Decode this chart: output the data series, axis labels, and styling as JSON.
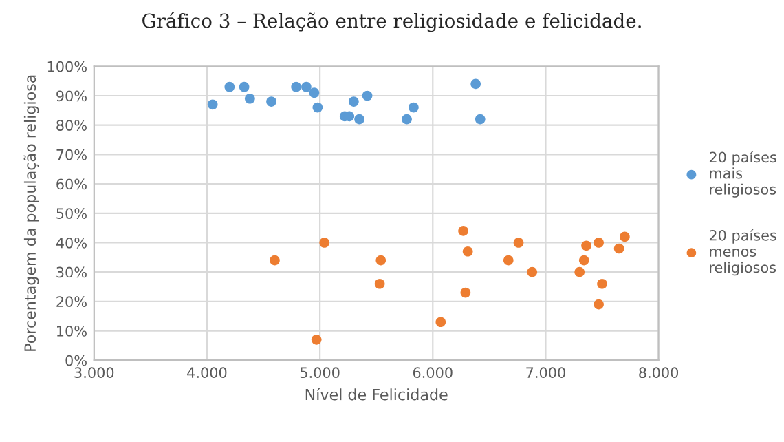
{
  "chart_data": {
    "type": "scatter",
    "title": "Gráfico 3 – Relação entre religiosidade e felicidade.",
    "xlabel": "Nível de Felicidade",
    "ylabel": "Porcentagem da população religiosa",
    "series": [
      {
        "name": "20 países mais religiosos",
        "color": "#5b9bd5",
        "x": [
          4050,
          4200,
          4330,
          4380,
          4570,
          4790,
          4880,
          4950,
          4980,
          5220,
          5260,
          5300,
          5350,
          5420,
          5770,
          5830,
          6380,
          6420
        ],
        "values": [
          87,
          93,
          93,
          89,
          88,
          93,
          93,
          91,
          86,
          83,
          83,
          88,
          82,
          90,
          82,
          86,
          94,
          82
        ]
      },
      {
        "name": "20 países menos religiosos",
        "color": "#ed7d31",
        "x": [
          4600,
          5040,
          4970,
          5540,
          5530,
          6070,
          6270,
          6310,
          6290,
          6670,
          6760,
          6880,
          7300,
          7360,
          7340,
          7470,
          7500,
          7470,
          7650,
          7700
        ],
        "values": [
          34,
          40,
          7,
          34,
          26,
          13,
          44,
          37,
          23,
          34,
          40,
          30,
          30,
          39,
          34,
          40,
          26,
          19,
          38,
          42
        ]
      }
    ],
    "xlim": [
      3000,
      8000
    ],
    "xticks": [
      {
        "value": 3000,
        "label": "3.000"
      },
      {
        "value": 4000,
        "label": "4.000"
      },
      {
        "value": 5000,
        "label": "5.000"
      },
      {
        "value": 6000,
        "label": "6.000"
      },
      {
        "value": 7000,
        "label": "7.000"
      },
      {
        "value": 8000,
        "label": "8.000"
      }
    ],
    "ylim": [
      0,
      100
    ],
    "yticks": [
      {
        "value": 0,
        "label": "0%"
      },
      {
        "value": 10,
        "label": "10%"
      },
      {
        "value": 20,
        "label": "20%"
      },
      {
        "value": 30,
        "label": "30%"
      },
      {
        "value": 40,
        "label": "40%"
      },
      {
        "value": 50,
        "label": "50%"
      },
      {
        "value": 60,
        "label": "60%"
      },
      {
        "value": 70,
        "label": "70%"
      },
      {
        "value": 80,
        "label": "80%"
      },
      {
        "value": 90,
        "label": "90%"
      },
      {
        "value": 100,
        "label": "100%"
      }
    ],
    "grid": true,
    "legend": "right",
    "marker": "circle"
  }
}
